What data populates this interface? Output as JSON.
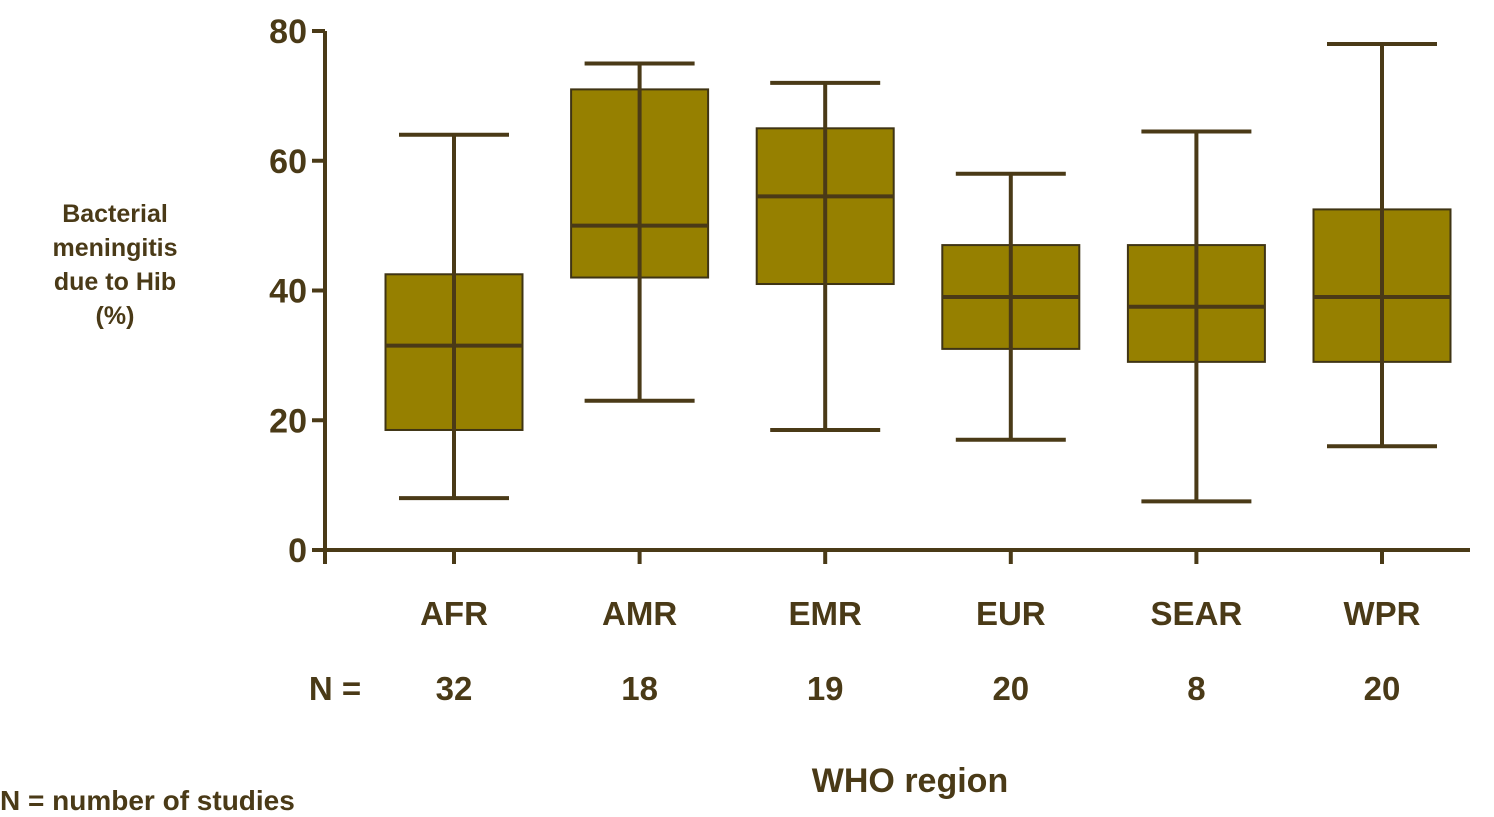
{
  "chart_data": {
    "type": "box",
    "title": "",
    "xlabel": "WHO region",
    "ylabel_lines": [
      "Bacterial",
      "meningitis",
      "due to Hib",
      "(%)"
    ],
    "ylim": [
      0,
      80
    ],
    "yticks": [
      0,
      20,
      40,
      60,
      80
    ],
    "categories": [
      "AFR",
      "AMR",
      "EMR",
      "EUR",
      "SEAR",
      "WPR"
    ],
    "n_label": "N =",
    "n_values": [
      "32",
      "18",
      "19",
      "20",
      "8",
      "20"
    ],
    "boxes": [
      {
        "category": "AFR",
        "min": 8,
        "q1": 18.5,
        "median": 31.5,
        "q3": 42.5,
        "max": 64
      },
      {
        "category": "AMR",
        "min": 23,
        "q1": 42,
        "median": 50,
        "q3": 71,
        "max": 75
      },
      {
        "category": "EMR",
        "min": 18.5,
        "q1": 41,
        "median": 54.5,
        "q3": 65,
        "max": 72
      },
      {
        "category": "EUR",
        "min": 17,
        "q1": 31,
        "median": 39,
        "q3": 47,
        "max": 58
      },
      {
        "category": "SEAR",
        "min": 7.5,
        "q1": 29,
        "median": 37.5,
        "q3": 47,
        "max": 64.5
      },
      {
        "category": "WPR",
        "min": 16,
        "q1": 29,
        "median": 39,
        "q3": 52.5,
        "max": 78
      }
    ],
    "footnote": "N = number of studies",
    "colors": {
      "box_fill": "#968000",
      "line": "#4a3a17"
    },
    "grid": false,
    "legend": "none"
  }
}
